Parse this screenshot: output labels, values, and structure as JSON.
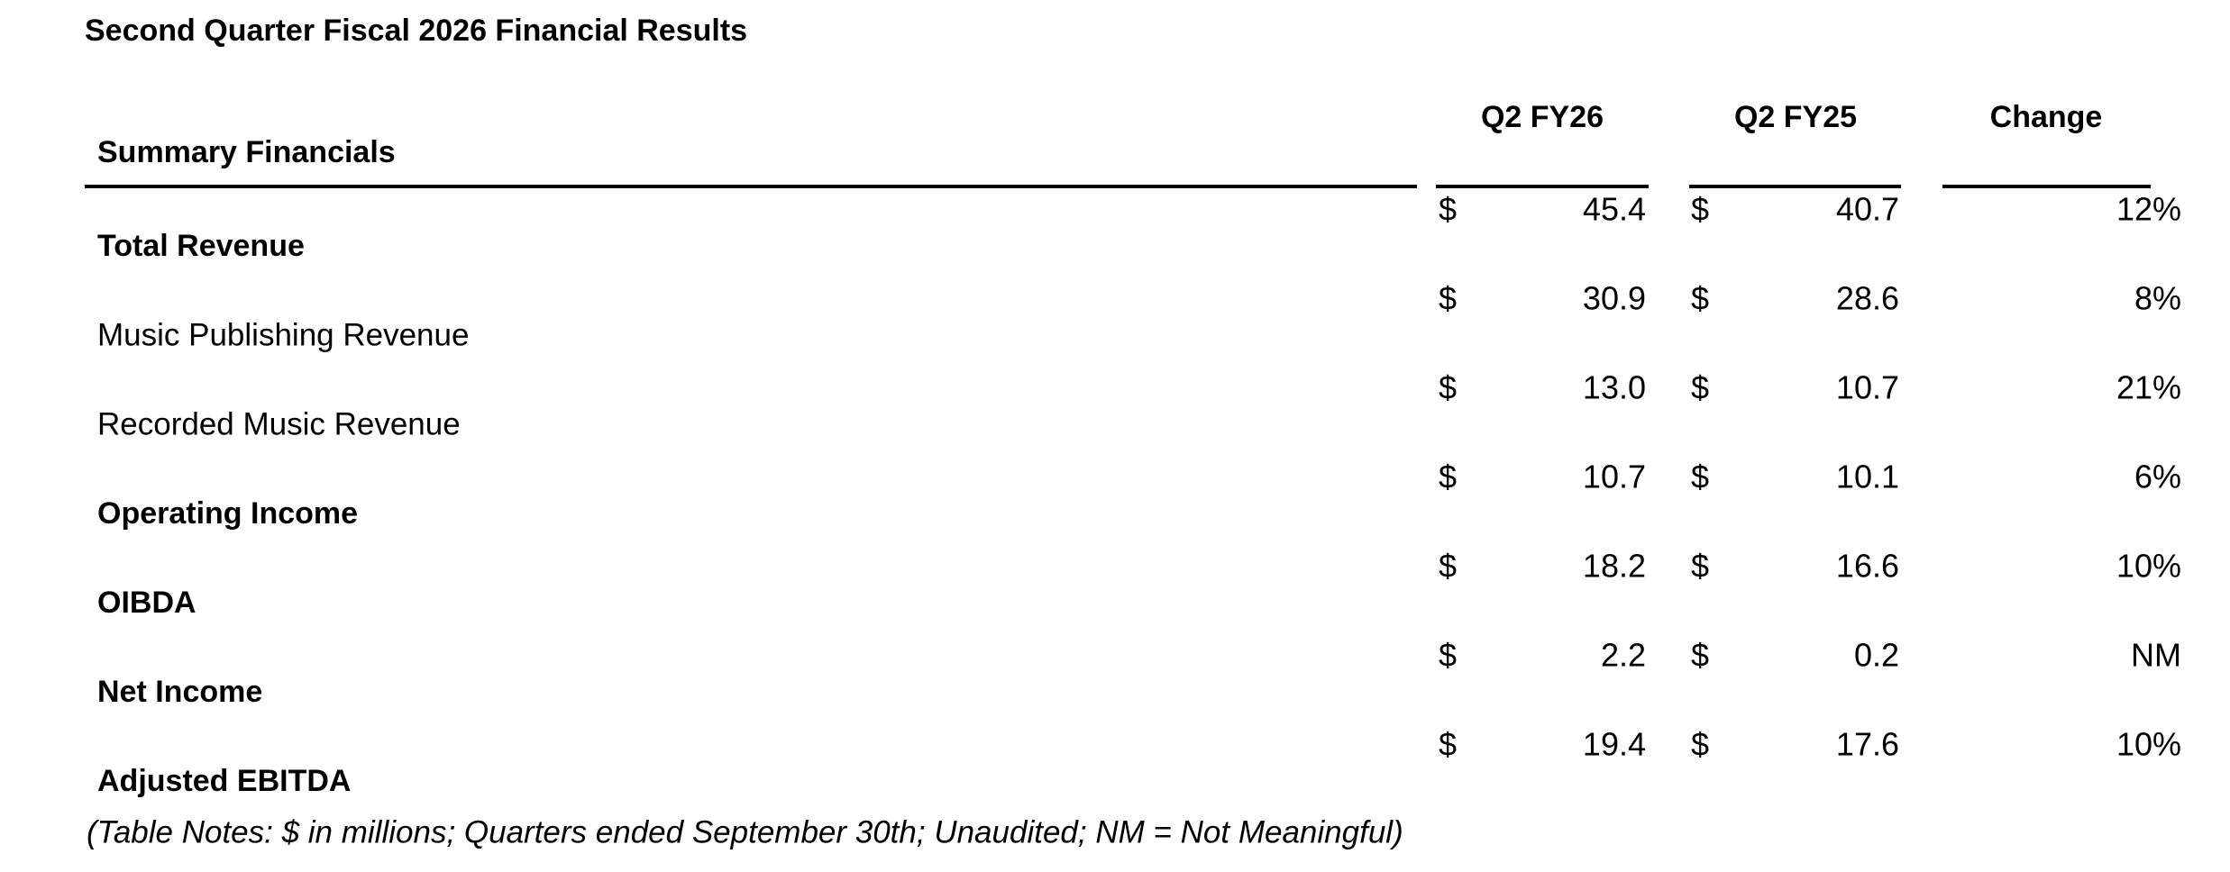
{
  "header": {
    "title": "Second Quarter Fiscal 2026 Financial Results"
  },
  "table": {
    "row_header": "Summary Financials",
    "columns": [
      "Q2 FY26",
      "Q2 FY25",
      "Change"
    ],
    "currency_symbol": "$",
    "rows": [
      {
        "label": "Total Revenue",
        "bold": true,
        "q2_fy26": "45.4",
        "q2_fy25": "40.7",
        "change": "12%"
      },
      {
        "label": "Music Publishing Revenue",
        "bold": false,
        "q2_fy26": "30.9",
        "q2_fy25": "28.6",
        "change": "8%"
      },
      {
        "label": "Recorded Music Revenue",
        "bold": false,
        "q2_fy26": "13.0",
        "q2_fy25": "10.7",
        "change": "21%"
      },
      {
        "label": "Operating Income",
        "bold": true,
        "q2_fy26": "10.7",
        "q2_fy25": "10.1",
        "change": "6%"
      },
      {
        "label": "OIBDA",
        "bold": true,
        "q2_fy26": "18.2",
        "q2_fy25": "16.6",
        "change": "10%"
      },
      {
        "label": "Net Income",
        "bold": true,
        "q2_fy26": "2.2",
        "q2_fy25": "0.2",
        "change": "NM"
      },
      {
        "label": "Adjusted EBITDA",
        "bold": true,
        "q2_fy26": "19.4",
        "q2_fy25": "17.6",
        "change": "10%"
      }
    ],
    "note": "(Table Notes: $ in millions; Quarters ended September 30th; Unaudited; NM = Not Meaningful)"
  }
}
